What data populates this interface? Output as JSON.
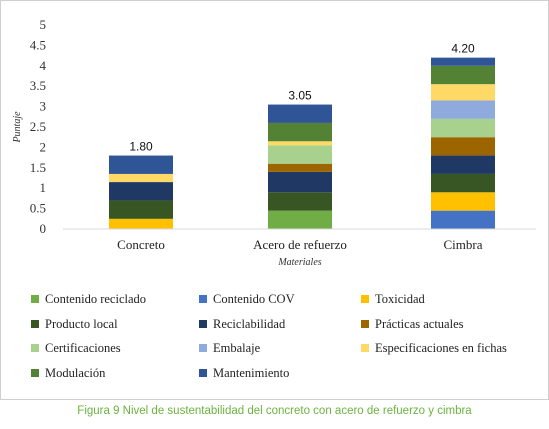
{
  "chart_data": {
    "type": "bar",
    "stacked": true,
    "categories": [
      "Concreto",
      "Acero de refuerzo",
      "Cimbra"
    ],
    "ylabel": "Puntaje",
    "xlabel": "Materiales",
    "ylim": [
      0,
      5
    ],
    "yticks": [
      "0",
      "0.5",
      "1",
      "1.5",
      "2",
      "2.5",
      "3",
      "3.5",
      "4",
      "4.5",
      "5"
    ],
    "totals": [
      "1.80",
      "3.05",
      "4.20"
    ],
    "grid": false,
    "legend_position": "bottom",
    "series": [
      {
        "name": "Contenido reciclado",
        "color": "#70ad47",
        "values": [
          0,
          0.45,
          0
        ]
      },
      {
        "name": "Contenido COV",
        "color": "#4472c4",
        "values": [
          0,
          0,
          0.45
        ]
      },
      {
        "name": "Toxicidad",
        "color": "#ffc000",
        "values": [
          0.25,
          0,
          0.45
        ]
      },
      {
        "name": "Producto local",
        "color": "#375623",
        "values": [
          0.45,
          0.45,
          0.45
        ]
      },
      {
        "name": "Reciclabilidad",
        "color": "#203864",
        "values": [
          0.45,
          0.5,
          0.45
        ]
      },
      {
        "name": "Prácticas actuales",
        "color": "#9c6500",
        "values": [
          0,
          0.2,
          0.45
        ]
      },
      {
        "name": "Certificaciones",
        "color": "#a9d18e",
        "values": [
          0,
          0.45,
          0.45
        ]
      },
      {
        "name": "Embalaje",
        "color": "#8faadc",
        "values": [
          0,
          0,
          0.45
        ]
      },
      {
        "name": "Especificaciones en fichas",
        "color": "#ffd966",
        "values": [
          0.2,
          0.1,
          0.4
        ]
      },
      {
        "name": "Modulación",
        "color": "#548235",
        "values": [
          0,
          0.45,
          0.45
        ]
      },
      {
        "name": "Mantenimiento",
        "color": "#2f5597",
        "values": [
          0.45,
          0.45,
          0.2
        ]
      }
    ]
  },
  "caption": "Figura 9 Nivel de sustentabilidad del concreto con acero de refuerzo y cimbra"
}
